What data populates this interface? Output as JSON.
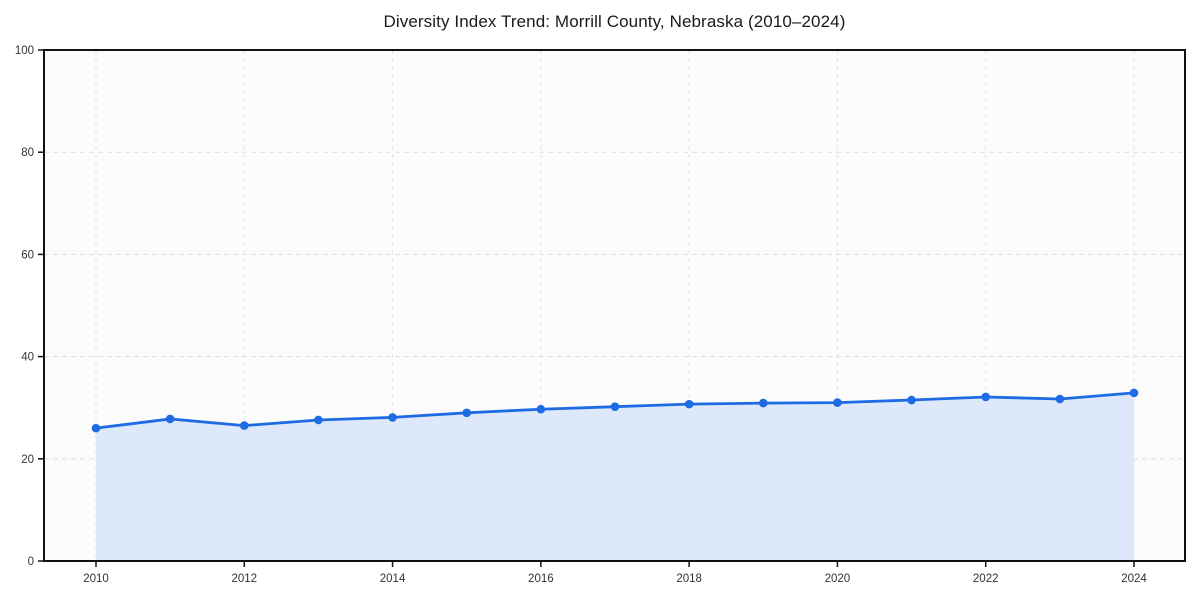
{
  "chart_data": {
    "type": "line",
    "title": "Diversity Index Trend: Morrill County, Nebraska (2010–2024)",
    "xlabel": "",
    "ylabel": "",
    "x": [
      2010,
      2011,
      2012,
      2013,
      2014,
      2015,
      2016,
      2017,
      2018,
      2019,
      2020,
      2021,
      2022,
      2023,
      2024
    ],
    "series": [
      {
        "name": "Diversity Index",
        "values": [
          26.0,
          27.8,
          26.5,
          27.6,
          28.1,
          29.0,
          29.7,
          30.2,
          30.7,
          30.9,
          31.0,
          31.5,
          32.1,
          31.7,
          32.9
        ]
      }
    ],
    "ylim": [
      0,
      100
    ],
    "yticks": [
      0,
      20,
      40,
      60,
      80,
      100
    ],
    "xticks": [
      2010,
      2012,
      2014,
      2016,
      2018,
      2020,
      2022,
      2024
    ],
    "grid": true,
    "grid_style": "dashed",
    "legend": false,
    "marker": "circle",
    "area_fill": true,
    "colors": {
      "line": "#1e6be4",
      "marker": "#1e6be4",
      "fill": "#dde9fb",
      "grid_h": "#dcdcdc",
      "grid_v": "#e2e2e2",
      "axis": "#111111",
      "tick_text": "#333333",
      "title_text": "#1a1a1a",
      "plot_bg": "#fcfcfc",
      "page_bg": "#ffffff"
    }
  }
}
